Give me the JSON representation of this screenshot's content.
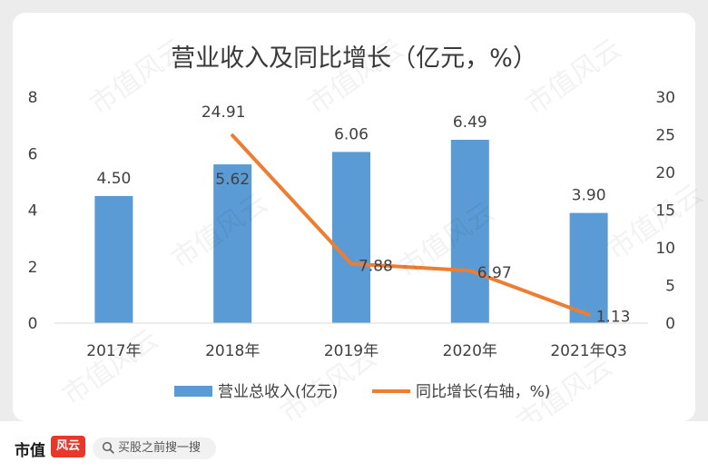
{
  "title": "营业收入及同比增长（亿元，%）",
  "chart_data": {
    "type": "bar+line",
    "categories": [
      "2017年",
      "2018年",
      "2019年",
      "2020年",
      "2021年Q3"
    ],
    "series": [
      {
        "name": "营业总收入(亿元)",
        "type": "bar",
        "axis": "left",
        "values": [
          4.5,
          5.62,
          6.06,
          6.49,
          3.9
        ],
        "labels": [
          "4.50",
          "5.62",
          "6.06",
          "6.49",
          "3.90"
        ],
        "color": "#5b9bd5"
      },
      {
        "name": "同比增长(右轴，%)",
        "type": "line",
        "axis": "right",
        "values": [
          null,
          24.91,
          7.88,
          6.97,
          1.13
        ],
        "labels": [
          "",
          "24.91",
          "7.88",
          "6.97",
          "1.13"
        ],
        "color": "#ed7d31"
      }
    ],
    "y_left": {
      "min": 0,
      "max": 8,
      "ticks": [
        "0",
        "2",
        "4",
        "6",
        "8"
      ]
    },
    "y_right": {
      "min": 0,
      "max": 30,
      "ticks": [
        "0",
        "5",
        "10",
        "15",
        "20",
        "25",
        "30"
      ]
    },
    "legend_position": "bottom",
    "grid": false
  },
  "footer": {
    "brand": "市值",
    "logo_text": "风云",
    "search_placeholder": "买股之前搜一搜"
  },
  "watermark": "市值风云"
}
